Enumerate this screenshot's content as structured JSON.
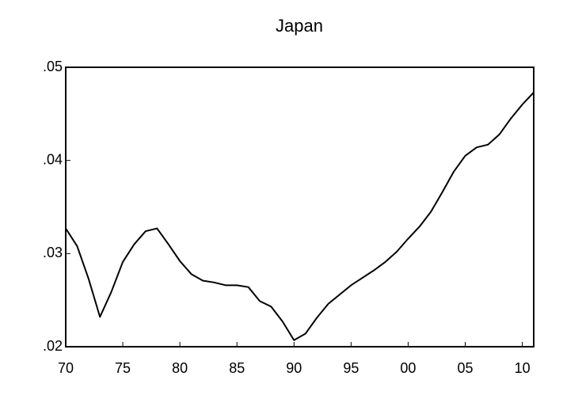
{
  "chart_data": {
    "type": "line",
    "title": "Japan",
    "categories": [
      "70",
      null,
      null,
      null,
      null,
      "75",
      null,
      null,
      null,
      null,
      "80",
      null,
      null,
      null,
      null,
      "85",
      null,
      null,
      null,
      null,
      "90",
      null,
      null,
      null,
      null,
      "95",
      null,
      null,
      null,
      null,
      "00",
      null,
      null,
      null,
      null,
      "05",
      null,
      null,
      null,
      null,
      "10",
      null
    ],
    "series": [
      {
        "color": "#000000",
        "values": [
          0.0327,
          0.0308,
          0.0273,
          0.0232,
          0.0259,
          0.0291,
          0.031,
          0.0324,
          0.0327,
          0.031,
          0.0292,
          0.0278,
          0.0271,
          0.0269,
          0.0266,
          0.0266,
          0.0264,
          0.0249,
          0.0243,
          0.0227,
          0.0207,
          0.0214,
          0.0231,
          0.0246,
          0.0256,
          0.0266,
          0.0274,
          0.0282,
          0.0291,
          0.0302,
          0.0316,
          0.0329,
          0.0345,
          0.0366,
          0.0388,
          0.0405,
          0.0414,
          0.0417,
          0.0428,
          0.0445,
          0.046,
          0.0473
        ]
      }
    ],
    "ylim": [
      0.02,
      0.05
    ],
    "yticks": [
      {
        "value": 0.02,
        "label": ".02"
      },
      {
        "value": 0.03,
        "label": ".03"
      },
      {
        "value": 0.04,
        "label": ".04"
      },
      {
        "value": 0.05,
        "label": ".05"
      }
    ],
    "grid": false
  }
}
